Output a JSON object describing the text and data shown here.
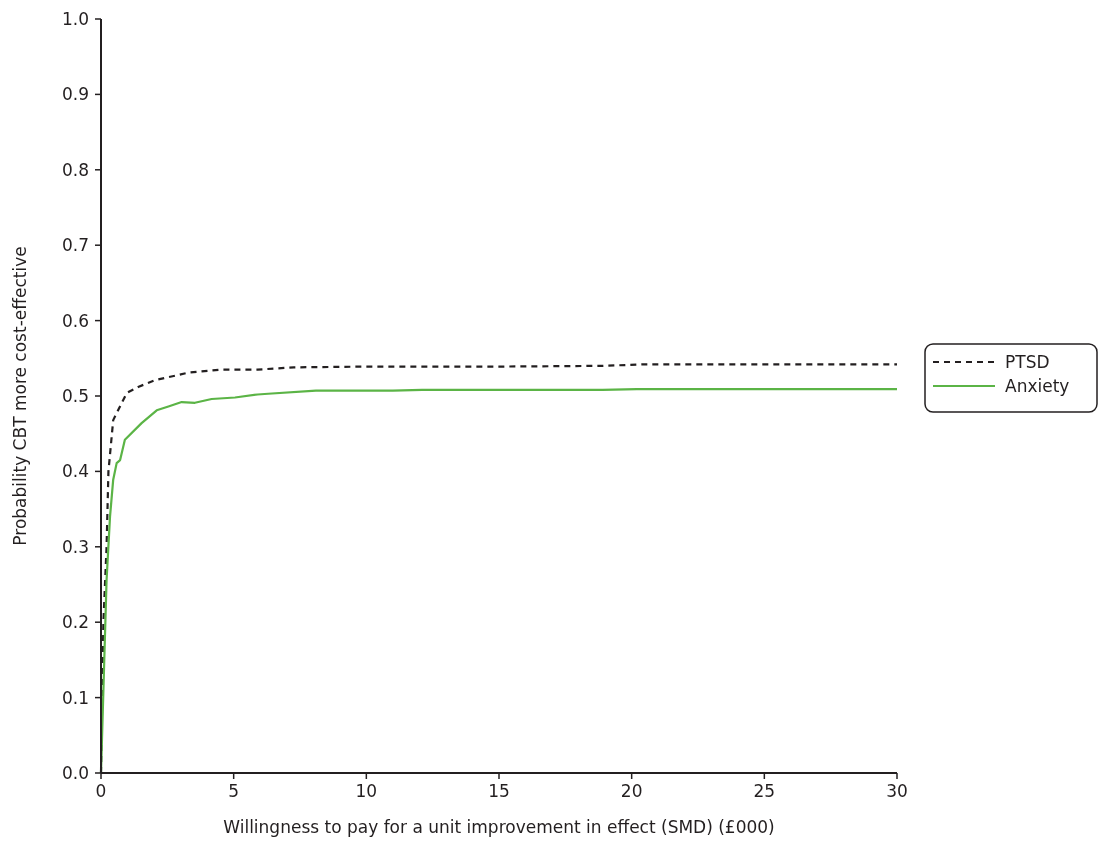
{
  "chart_data": {
    "type": "line",
    "xlabel": "Willingness to pay for a unit improvement in effect (SMD) (£000)",
    "ylabel": "Probability CBT more cost-effective",
    "xlim": [
      0,
      30
    ],
    "ylim": [
      0,
      1
    ],
    "xticks": [
      0,
      5,
      10,
      15,
      20,
      25,
      30
    ],
    "yticks": [
      {
        "value": 0,
        "label": "0.0"
      },
      {
        "value": 0.1,
        "label": "0.1"
      },
      {
        "value": 0.2,
        "label": "0.2"
      },
      {
        "value": 0.3,
        "label": "0.3"
      },
      {
        "value": 0.4,
        "label": "0.4"
      },
      {
        "value": 0.5,
        "label": "0.5"
      },
      {
        "value": 0.6,
        "label": "0.6"
      },
      {
        "value": 0.7,
        "label": "0.7"
      },
      {
        "value": 0.8,
        "label": "0.8"
      },
      {
        "value": 0.9,
        "label": "0.9"
      },
      {
        "value": 1,
        "label": "1.0"
      }
    ],
    "legend": "right",
    "grid": false,
    "marker": "none",
    "series": [
      {
        "name": "PTSD",
        "color": "#231f20",
        "line_style": "dashed",
        "x": [
          0,
          0.09,
          0.21,
          0.28,
          0.46,
          0.97,
          1.4,
          2.04,
          3.3,
          4.55,
          5.9,
          7.27,
          10,
          15,
          18.9,
          20.5,
          25,
          30
        ],
        "values": [
          0,
          0.2,
          0.3,
          0.4,
          0.468,
          0.504,
          0.512,
          0.521,
          0.531,
          0.535,
          0.535,
          0.538,
          0.539,
          0.539,
          0.54,
          0.542,
          0.542,
          0.542
        ]
      },
      {
        "name": "Anxiety",
        "color": "#5bb446",
        "line_style": "solid",
        "x": [
          0,
          0.12,
          0.21,
          0.34,
          0.46,
          0.59,
          0.72,
          0.9,
          1.53,
          2.1,
          2.54,
          3.04,
          3.54,
          4.17,
          5.05,
          5.9,
          6.3,
          8.1,
          11,
          12.1,
          18.9,
          20.2,
          25,
          30
        ],
        "values": [
          0,
          0.146,
          0.256,
          0.34,
          0.389,
          0.411,
          0.415,
          0.442,
          0.464,
          0.481,
          0.486,
          0.492,
          0.491,
          0.496,
          0.498,
          0.502,
          0.503,
          0.507,
          0.507,
          0.508,
          0.508,
          0.509,
          0.509,
          0.509
        ]
      }
    ]
  }
}
